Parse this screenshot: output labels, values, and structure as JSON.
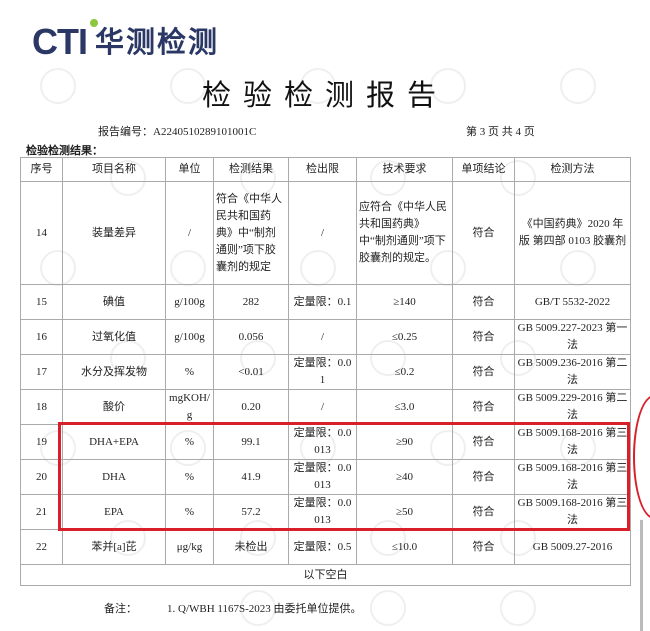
{
  "logo": {
    "brand": "CTI",
    "name": "华测检测",
    "accent": "#2b3866",
    "dot": "#8dc63f"
  },
  "title": "检验检测报告",
  "report_no": "报告编号：A2240510289101001C",
  "page_info": "第 3 页  共 4 页",
  "section": "检验检测结果：",
  "headers": [
    "序号",
    "项目名称",
    "单位",
    "检测结果",
    "检出限",
    "技术要求",
    "单项结论",
    "检测方法"
  ],
  "rows": [
    [
      "14",
      "装量差异",
      "/",
      "符合《中华人民共和国药典》中“制剂通则”项下胶囊剂的规定",
      "/",
      "应符合《中华人民共和国药典》中“制剂通则”项下胶囊剂的规定。",
      "符合",
      "《中国药典》2020 年版 第四部 0103 胶囊剂"
    ],
    [
      "15",
      "碘值",
      "g/100g",
      "282",
      "定量限：0.1",
      "≥140",
      "符合",
      "GB/T 5532-2022"
    ],
    [
      "16",
      "过氧化值",
      "g/100g",
      "0.056",
      "/",
      "≤0.25",
      "符合",
      "GB 5009.227-2023 第一法"
    ],
    [
      "17",
      "水分及挥发物",
      "%",
      "<0.01",
      "定量限：0.01",
      "≤0.2",
      "符合",
      "GB 5009.236-2016 第二法"
    ],
    [
      "18",
      "酸价",
      "mgKOH/g",
      "0.20",
      "/",
      "≤3.0",
      "符合",
      "GB 5009.229-2016 第二法"
    ],
    [
      "19",
      "DHA+EPA",
      "%",
      "99.1",
      "定量限：0.0013",
      "≥90",
      "符合",
      "GB 5009.168-2016 第三法"
    ],
    [
      "20",
      "DHA",
      "%",
      "41.9",
      "定量限：0.0013",
      "≥40",
      "符合",
      "GB 5009.168-2016 第三法"
    ],
    [
      "21",
      "EPA",
      "%",
      "57.2",
      "定量限：0.0013",
      "≥50",
      "符合",
      "GB 5009.168-2016 第三法"
    ],
    [
      "22",
      "苯并[a]芘",
      "μg/kg",
      "未检出",
      "定量限：0.5",
      "≤10.0",
      "符合",
      "GB 5009.27-2016"
    ]
  ],
  "blank_row": "以下空白",
  "note_label": "备注：",
  "note": "1. Q/WBH 1167S-2023 由委托单位提供。",
  "highlight_color": "#d8202a",
  "watermark": "CTI"
}
